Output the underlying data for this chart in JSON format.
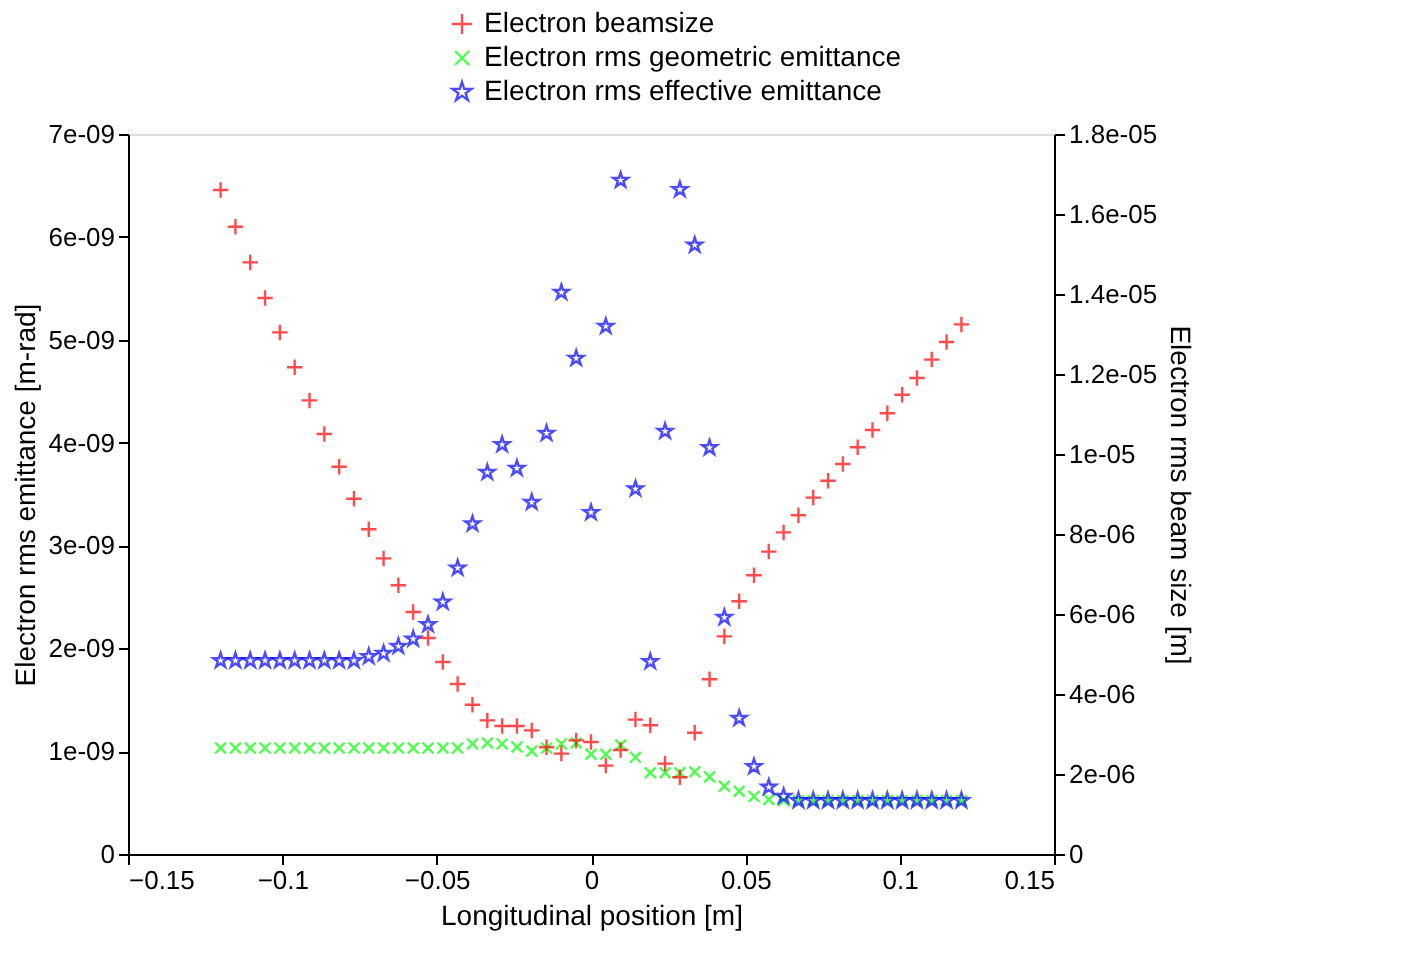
{
  "chart_data": {
    "type": "scatter",
    "xlabel": "Longitudinal position [m]",
    "ylabel": "Electron rms emittance [m-rad]",
    "y2label": "Electron rms beam size [m]",
    "x": [
      -0.12,
      -0.1152,
      -0.1104,
      -0.1056,
      -0.1008,
      -0.096,
      -0.0912,
      -0.0864,
      -0.0816,
      -0.0768,
      -0.072,
      -0.0672,
      -0.0624,
      -0.0576,
      -0.0528,
      -0.048,
      -0.0432,
      -0.0384,
      -0.0336,
      -0.0288,
      -0.024,
      -0.0192,
      -0.0144,
      -0.0096,
      -0.0048,
      0,
      0.0048,
      0.0096,
      0.0144,
      0.0192,
      0.024,
      0.0288,
      0.0336,
      0.0384,
      0.0432,
      0.048,
      0.0528,
      0.0576,
      0.0624,
      0.0672,
      0.072,
      0.0768,
      0.0816,
      0.0864,
      0.0912,
      0.096,
      0.1008,
      0.1056,
      0.1104,
      0.1152,
      0.12
    ],
    "series": [
      {
        "name": "Electron beamsize",
        "color": "#ff0000",
        "marker": "cross",
        "axis": "y2",
        "values": [
          1.66e-05,
          1.568e-05,
          1.479e-05,
          1.39e-05,
          1.304e-05,
          1.217e-05,
          1.134e-05,
          1.05e-05,
          9.68e-06,
          8.88e-06,
          8.12e-06,
          7.39e-06,
          6.72e-06,
          6.05e-06,
          5.4e-06,
          4.8e-06,
          4.25e-06,
          3.73e-06,
          3.34e-06,
          3.2e-06,
          3.2e-06,
          3.09e-06,
          2.67e-06,
          2.51e-06,
          2.84e-06,
          2.8e-06,
          2.21e-06,
          2.6e-06,
          3.36e-06,
          3.22e-06,
          2.26e-06,
          1.92e-06,
          3.03e-06,
          4.37e-06,
          5.44e-06,
          6.32e-06,
          6.97e-06,
          7.56e-06,
          8.04e-06,
          8.47e-06,
          8.91e-06,
          9.33e-06,
          9.75e-06,
          1.017e-05,
          1.06e-05,
          1.102e-05,
          1.148e-05,
          1.19e-05,
          1.236e-05,
          1.28e-05,
          1.324e-05
        ]
      },
      {
        "name": "Electron rms geometric emittance",
        "color": "#00ff00",
        "marker": "cross",
        "values": [
          1.03e-09,
          1.03e-09,
          1.03e-09,
          1.03e-09,
          1.03e-09,
          1.03e-09,
          1.03e-09,
          1.03e-09,
          1.03e-09,
          1.03e-09,
          1.03e-09,
          1.03e-09,
          1.03e-09,
          1.03e-09,
          1.03e-09,
          1.03e-09,
          1.03e-09,
          1.07e-09,
          1.08e-09,
          1.07e-09,
          1.04e-09,
          1e-09,
          1.03e-09,
          1.07e-09,
          1.08e-09,
          9.7e-10,
          9.7e-10,
          1.06e-09,
          9.4e-10,
          7.9e-10,
          7.9e-10,
          7.9e-10,
          8e-10,
          7.5e-10,
          6.6e-10,
          6.1e-10,
          5.6e-10,
          5.3e-10,
          5.2e-10,
          5.2e-10,
          5.2e-10,
          5.2e-10,
          5.2e-10,
          5.2e-10,
          5.2e-10,
          5.2e-10,
          5.2e-10,
          5.2e-10,
          5.2e-10,
          5.2e-10,
          5.2e-10
        ]
      },
      {
        "name": "Electron rms effective emittance",
        "color": "#0000ff",
        "marker": "star",
        "values": [
          1.88e-09,
          1.88e-09,
          1.88e-09,
          1.88e-09,
          1.88e-09,
          1.88e-09,
          1.88e-09,
          1.88e-09,
          1.88e-09,
          1.88e-09,
          1.92e-09,
          1.95e-09,
          2.02e-09,
          2.09e-09,
          2.23e-09,
          2.45e-09,
          2.78e-09,
          3.21e-09,
          3.71e-09,
          3.98e-09,
          3.75e-09,
          3.42e-09,
          4.09e-09,
          5.46e-09,
          4.82e-09,
          3.32e-09,
          5.13e-09,
          6.55e-09,
          3.55e-09,
          1.87e-09,
          4.11e-09,
          6.46e-09,
          5.92e-09,
          3.95e-09,
          2.3e-09,
          1.32e-09,
          8.5e-10,
          6.5e-10,
          5.6e-10,
          5.2e-10,
          5.2e-10,
          5.2e-10,
          5.2e-10,
          5.2e-10,
          5.2e-10,
          5.2e-10,
          5.2e-10,
          5.2e-10,
          5.2e-10,
          5.2e-10,
          5.2e-10
        ]
      }
    ],
    "xlim": [
      -0.15,
      0.15
    ],
    "xticks": [
      -0.15,
      -0.1,
      -0.05,
      0,
      0.05,
      0.1,
      0.15
    ],
    "ylim": [
      0,
      7e-09
    ],
    "yticks": [
      {
        "value": 0,
        "label": "0"
      },
      {
        "value": 1e-09,
        "label": "1e-09"
      },
      {
        "value": 2e-09,
        "label": "2e-09"
      },
      {
        "value": 3e-09,
        "label": "3e-09"
      },
      {
        "value": 4e-09,
        "label": "4e-09"
      },
      {
        "value": 5e-09,
        "label": "5e-09"
      },
      {
        "value": 6e-09,
        "label": "6e-09"
      },
      {
        "value": 7e-09,
        "label": "7e-09"
      }
    ],
    "y2lim": [
      0,
      1.8e-05
    ],
    "y2ticks": [
      {
        "value": 0,
        "label": "0"
      },
      {
        "value": 2e-06,
        "label": "2e-06"
      },
      {
        "value": 4e-06,
        "label": "4e-06"
      },
      {
        "value": 6e-06,
        "label": "6e-06"
      },
      {
        "value": 8e-06,
        "label": "8e-06"
      },
      {
        "value": 1e-05,
        "label": "1e-05"
      },
      {
        "value": 1.2e-05,
        "label": "1.2e-05"
      },
      {
        "value": 1.4e-05,
        "label": "1.4e-05"
      },
      {
        "value": 1.6e-05,
        "label": "1.6e-05"
      },
      {
        "value": 1.8e-05,
        "label": "1.8e-05"
      }
    ],
    "grid": false,
    "legend": "top right"
  }
}
